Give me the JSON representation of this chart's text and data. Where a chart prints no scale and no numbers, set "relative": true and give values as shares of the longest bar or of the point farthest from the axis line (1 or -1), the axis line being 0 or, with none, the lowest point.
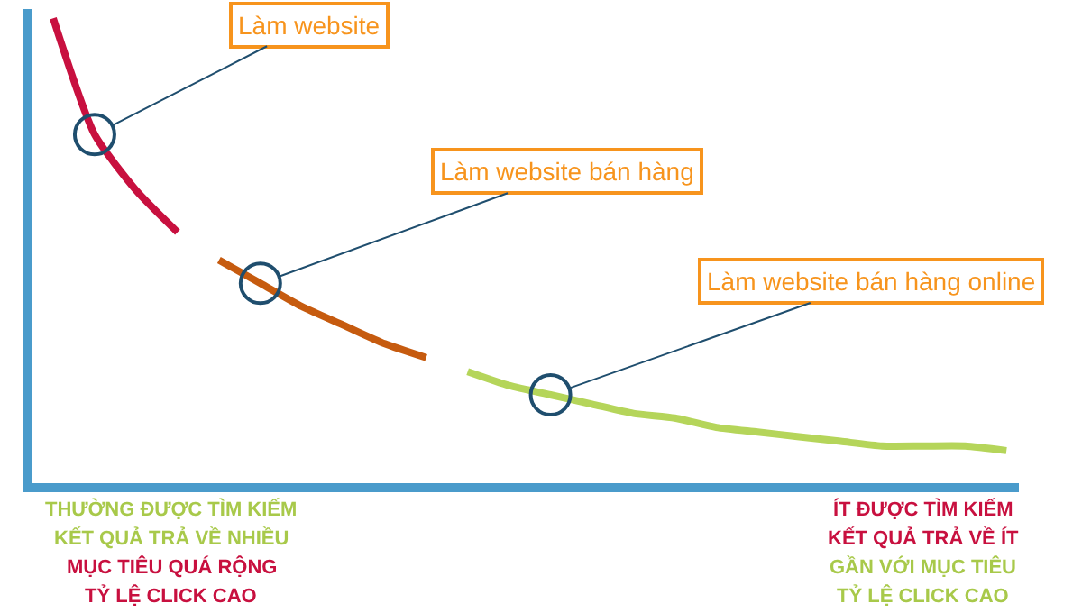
{
  "chart_data": {
    "type": "line",
    "relative": true,
    "categories": [
      null,
      null,
      null,
      null,
      null,
      null,
      null,
      null,
      null,
      null,
      null,
      null,
      null,
      null,
      null,
      null,
      null,
      null,
      null,
      null,
      null,
      null,
      null,
      null
    ],
    "series": [
      {
        "color": "#c8103f",
        "values": [
          1,
          0.75,
          0.63,
          0.54,
          null,
          null,
          null,
          null,
          null,
          null,
          null,
          null,
          null,
          null,
          null,
          null,
          null,
          null,
          null,
          null,
          null,
          null,
          null,
          null
        ]
      },
      {
        "color": "#c65b0f",
        "values": [
          null,
          null,
          null,
          null,
          0.48,
          0.43,
          0.38,
          0.34,
          0.3,
          0.27,
          null,
          null,
          null,
          null,
          null,
          null,
          null,
          null,
          null,
          null,
          null,
          null,
          null,
          null
        ]
      },
      {
        "color": "#b5d55a",
        "values": [
          null,
          null,
          null,
          null,
          null,
          null,
          null,
          null,
          null,
          null,
          0.24,
          0.21,
          0.19,
          0.17,
          0.15,
          0.14,
          0.12,
          0.11,
          0.1,
          0.09,
          0.08,
          0.08,
          0.08,
          0.07
        ]
      }
    ],
    "annotations": [
      "Làm website",
      "Làm website bán hàng",
      "Làm website bán hàng online",
      "THƯỜNG ĐƯỢC TÌM KIẾM",
      "KẾT QUẢ TRẢ VỀ NHIỀU",
      "MỤC TIÊU QUÁ RỘNG",
      "TỶ LỆ CLICK CAO",
      "ÍT ĐƯỢC TÌM KIẾM",
      "KẾT QUẢ TRẢ VỀ ÍT",
      "GẦN VỚI MỤC TIÊU",
      "TỶ LỆ CLICK CAO"
    ]
  }
}
